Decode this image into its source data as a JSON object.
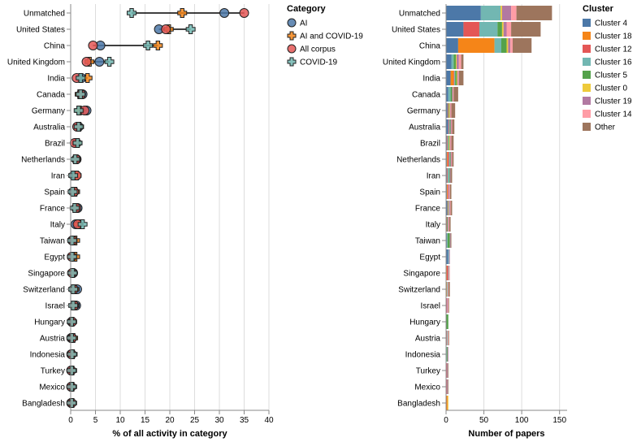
{
  "chart_data": [
    {
      "type": "scatter",
      "title": "",
      "xlabel": "% of all activity in category",
      "ylabel": "",
      "xlim": [
        0,
        40
      ],
      "xticks": [
        0,
        5,
        10,
        15,
        20,
        25,
        30,
        35,
        40
      ],
      "grid": true,
      "legend_title": "Category",
      "legend_position": "right",
      "categories": [
        "Unmatched",
        "United States",
        "China",
        "United Kingdom",
        "India",
        "Canada",
        "Germany",
        "Australia",
        "Brazil",
        "Netherlands",
        "Iran",
        "Spain",
        "France",
        "Italy",
        "Taiwan",
        "Egypt",
        "Singapore",
        "Switzerland",
        "Israel",
        "Hungary",
        "Austria",
        "Indonesia",
        "Turkey",
        "Mexico",
        "Bangladesh"
      ],
      "series": [
        {
          "name": "AI",
          "marker": "circle",
          "color": "#4c78a8",
          "values": [
            31,
            17.8,
            6,
            5.8,
            2.2,
            2.4,
            3.2,
            1.6,
            1.2,
            1.2,
            0.6,
            0.5,
            1.4,
            1,
            0.3,
            0.4,
            0.5,
            1.3,
            1.1,
            0.2,
            0.1,
            0.1,
            0.1,
            0.1,
            0.1
          ]
        },
        {
          "name": "AI and COVID-19",
          "marker": "cross",
          "color": "#f58518",
          "values": [
            22.5,
            19.8,
            17.6,
            3.8,
            3.4,
            1.8,
            1.8,
            1.7,
            1.3,
            1.1,
            1.2,
            0.9,
            1.1,
            1.6,
            0.9,
            0.9,
            0.3,
            0.8,
            0.8,
            0.3,
            0.5,
            0.4,
            0.3,
            0.3,
            0.3
          ]
        },
        {
          "name": "All corpus",
          "marker": "circle",
          "color": "#e45756",
          "values": [
            35,
            19.2,
            4.5,
            3.2,
            1.2,
            2.1,
            2.8,
            1.3,
            0.8,
            1.1,
            1.2,
            0.7,
            1.1,
            1.4,
            0.4,
            0.2,
            0.3,
            0.6,
            0.7,
            0.3,
            0.3,
            0.2,
            0.1,
            0.1,
            0.2
          ]
        },
        {
          "name": "COVID-19",
          "marker": "cross",
          "color": "#72b7b2",
          "values": [
            12.3,
            24.2,
            15.6,
            7.8,
            2,
            2,
            1.6,
            1.6,
            1.4,
            0.9,
            0.5,
            0.4,
            0.8,
            2.4,
            0.3,
            0.3,
            0.4,
            0.5,
            0.5,
            0.2,
            0.2,
            0.3,
            0.2,
            0.2,
            0.2
          ]
        }
      ]
    },
    {
      "type": "bar",
      "orientation": "horizontal",
      "stacked": true,
      "title": "",
      "xlabel": "Number of papers",
      "ylabel": "",
      "xlim": [
        0,
        160
      ],
      "xticks": [
        0,
        50,
        100,
        150
      ],
      "grid": true,
      "legend_title": "Cluster",
      "legend_position": "right",
      "categories": [
        "Unmatched",
        "United States",
        "China",
        "United Kingdom",
        "India",
        "Canada",
        "Germany",
        "Australia",
        "Brazil",
        "Netherlands",
        "Iran",
        "Spain",
        "France",
        "Italy",
        "Taiwan",
        "Egypt",
        "Singapore",
        "Switzerland",
        "Israel",
        "Hungary",
        "Austria",
        "Indonesia",
        "Turkey",
        "Mexico",
        "Bangladesh"
      ],
      "series": [
        {
          "name": "Cluster 4",
          "color": "#4c78a8",
          "values": [
            46,
            23,
            16,
            7,
            6,
            3,
            2,
            3,
            1,
            1,
            1,
            1,
            2,
            0,
            1,
            3,
            0,
            0,
            0,
            0,
            0,
            0,
            0,
            0,
            0
          ]
        },
        {
          "name": "Cluster 18",
          "color": "#f58518",
          "values": [
            0,
            0,
            48,
            0,
            4,
            0,
            0,
            0,
            0,
            1,
            0,
            1,
            1,
            0,
            0,
            0,
            1,
            1,
            0,
            0,
            0,
            0,
            0,
            0,
            2
          ]
        },
        {
          "name": "Cluster 12",
          "color": "#e45756",
          "values": [
            0,
            21,
            0,
            0,
            1,
            0,
            1,
            1,
            1,
            2,
            1,
            1,
            0,
            1,
            0,
            0,
            2,
            0,
            1,
            0,
            1,
            0,
            1,
            1,
            0
          ]
        },
        {
          "name": "Cluster 16",
          "color": "#72b7b2",
          "values": [
            26,
            24,
            9,
            3,
            1,
            3,
            0,
            1,
            1,
            1,
            2,
            0,
            1,
            0,
            1,
            1,
            1,
            1,
            0,
            0,
            1,
            1,
            0,
            0,
            0
          ]
        },
        {
          "name": "Cluster 5",
          "color": "#54a24b",
          "values": [
            0,
            6,
            7,
            3,
            2,
            2,
            1,
            1,
            1,
            1,
            1,
            0,
            0,
            1,
            3,
            0,
            0,
            0,
            0,
            3,
            0,
            1,
            0,
            0,
            0
          ]
        },
        {
          "name": "Cluster 0",
          "color": "#eeca3b",
          "values": [
            2,
            2,
            2,
            1,
            1,
            0,
            1,
            0,
            1,
            0,
            0,
            0,
            0,
            0,
            0,
            0,
            0,
            0,
            0,
            0,
            0,
            0,
            0,
            0,
            1
          ]
        },
        {
          "name": "Cluster 19",
          "color": "#b279a2",
          "values": [
            12,
            4,
            3,
            3,
            1,
            1,
            1,
            1,
            1,
            1,
            1,
            1,
            1,
            1,
            1,
            1,
            0,
            0,
            1,
            0,
            0,
            1,
            1,
            1,
            0
          ]
        },
        {
          "name": "Cluster 14",
          "color": "#ff9da6",
          "values": [
            7,
            6,
            3,
            3,
            1,
            1,
            1,
            1,
            1,
            1,
            0,
            1,
            1,
            1,
            0,
            0,
            1,
            1,
            1,
            0,
            1,
            0,
            0,
            0,
            0
          ]
        },
        {
          "name": "Other",
          "color": "#9d755d",
          "values": [
            47,
            39,
            25,
            3,
            6,
            6,
            5,
            3,
            3,
            2,
            2,
            2,
            2,
            2,
            1,
            0,
            0,
            2,
            1,
            0,
            1,
            0,
            1,
            1,
            0
          ]
        }
      ]
    }
  ]
}
